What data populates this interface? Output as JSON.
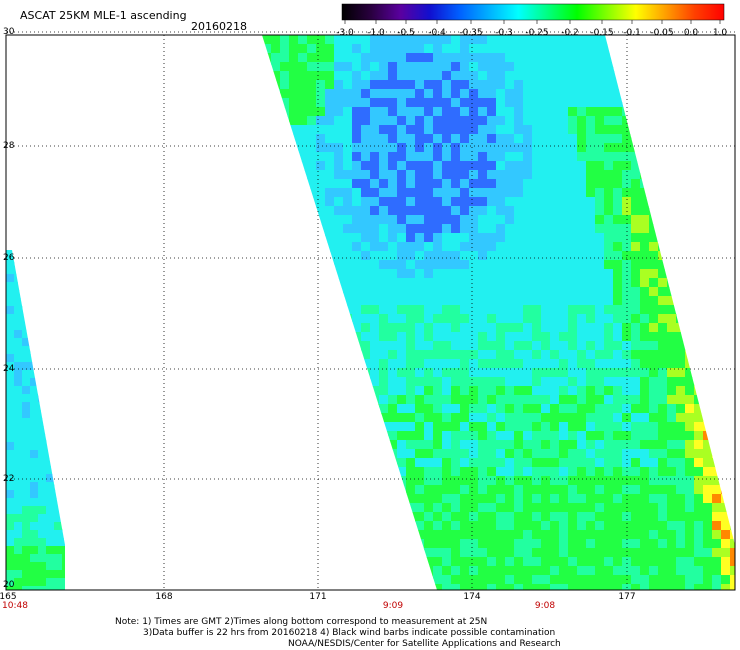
{
  "header": {
    "title": "ASCAT 25KM MLE-1 ascending",
    "date": "20160218"
  },
  "colorbar": {
    "stops": [
      "#000000",
      "#2a0040",
      "#5a00a0",
      "#1010d0",
      "#0060ff",
      "#00b0ff",
      "#00ffff",
      "#00ff80",
      "#00ff00",
      "#80ff00",
      "#ffff00",
      "#ffa000",
      "#ff4000",
      "#ff0000"
    ],
    "labels": [
      "-3.0",
      "-1.0",
      "-0.5",
      "-0.4",
      "-0.35",
      "-0.3",
      "-0.25",
      "-0.2",
      "-0.15",
      "-0.1",
      "-0.05",
      "0.0",
      "1.0"
    ]
  },
  "axes": {
    "lat_labels": [
      "30",
      "28",
      "26",
      "24",
      "22",
      "20"
    ],
    "lon_labels": [
      "165",
      "168",
      "171",
      "174",
      "177"
    ]
  },
  "pass_times": [
    "10:48",
    "9:09",
    "9:08"
  ],
  "notes": {
    "line1": "Note: 1) Times are GMT 2)Times along bottom correspond to measurement at 25N",
    "line2": "3)Data buffer is 22 hrs from 20160218 4) Black wind barbs indicate possible contamination",
    "line3": "NOAA/NESDIS/Center for Satellite Applications and Research"
  },
  "swath_colors": {
    "blue": "#2f6cff",
    "light_blue": "#33c8ff",
    "cyan": "#22f0f0",
    "green_cyan": "#22ffa0",
    "green": "#22ff44",
    "yellow_green": "#aaff22",
    "yellow": "#ffff22",
    "orange": "#ff8800"
  }
}
